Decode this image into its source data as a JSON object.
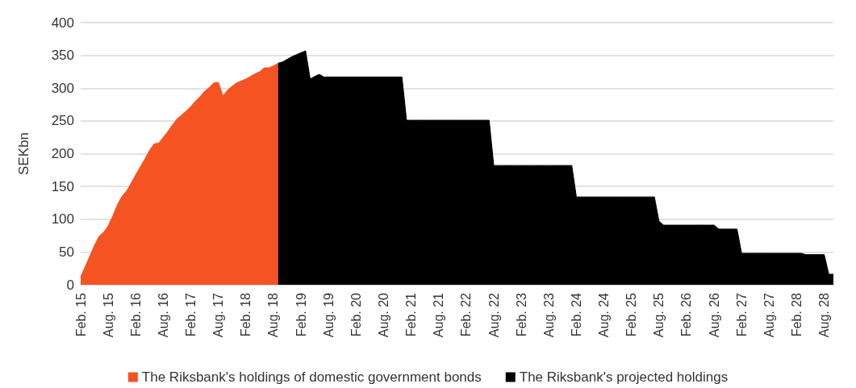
{
  "chart_data": {
    "type": "area",
    "ylabel": "SEKbn",
    "ylim": [
      0,
      400
    ],
    "yticks": [
      0,
      50,
      100,
      150,
      200,
      250,
      300,
      350,
      400
    ],
    "grid": "y",
    "legend": "bottom",
    "categories": [
      "Feb. 15",
      null,
      null,
      null,
      null,
      null,
      "Aug. 15",
      null,
      null,
      null,
      null,
      null,
      "Feb. 16",
      null,
      null,
      null,
      null,
      null,
      "Aug. 16",
      null,
      null,
      null,
      null,
      null,
      "Feb. 17",
      null,
      null,
      null,
      null,
      null,
      "Aug. 17",
      null,
      null,
      null,
      null,
      null,
      "Feb. 18",
      null,
      null,
      null,
      null,
      null,
      "Aug. 18",
      null,
      null,
      null,
      null,
      null,
      "Feb. 19",
      null,
      null,
      null,
      null,
      null,
      "Aug. 19",
      null,
      null,
      null,
      null,
      null,
      "Feb. 20",
      null,
      null,
      null,
      null,
      null,
      "Aug. 20",
      null,
      null,
      null,
      null,
      null,
      "Feb. 21",
      null,
      null,
      null,
      null,
      null,
      "Aug. 21",
      null,
      null,
      null,
      null,
      null,
      "Feb. 22",
      null,
      null,
      null,
      null,
      null,
      "Aug. 22",
      null,
      null,
      null,
      null,
      null,
      "Feb. 23",
      null,
      null,
      null,
      null,
      null,
      "Aug. 23",
      null,
      null,
      null,
      null,
      null,
      "Feb. 24",
      null,
      null,
      null,
      null,
      null,
      "Aug. 24",
      null,
      null,
      null,
      null,
      null,
      "Feb. 25",
      null,
      null,
      null,
      null,
      null,
      "Aug. 25",
      null,
      null,
      null,
      null,
      null,
      "Feb. 26",
      null,
      null,
      null,
      null,
      null,
      "Aug. 26",
      null,
      null,
      null,
      null,
      null,
      "Feb. 27",
      null,
      null,
      null,
      null,
      null,
      "Aug. 27",
      null,
      null,
      null,
      null,
      null,
      "Feb. 28",
      null,
      null,
      null,
      null,
      null,
      "Aug. 28",
      null,
      null
    ],
    "series": [
      {
        "name": "The Riksbank's holdings of domestic government bonds",
        "color": "#f55321",
        "values": [
          12,
          28,
          44,
          60,
          74,
          80,
          90,
          105,
          122,
          135,
          143,
          155,
          168,
          180,
          192,
          205,
          215,
          216,
          225,
          234,
          244,
          253,
          259,
          265,
          272,
          280,
          287,
          295,
          301,
          308,
          309,
          288,
          297,
          303,
          308,
          311,
          314,
          318,
          322,
          325,
          331,
          331,
          334,
          338,
          null,
          null,
          null,
          null,
          null,
          null,
          null,
          null,
          null,
          null,
          null,
          null,
          null,
          null,
          null,
          null,
          null,
          null,
          null,
          null,
          null,
          null,
          null,
          null,
          null,
          null,
          null,
          null,
          null,
          null,
          null,
          null,
          null,
          null,
          null,
          null,
          null,
          null,
          null,
          null,
          null,
          null,
          null,
          null,
          null,
          null,
          null,
          null,
          null,
          null,
          null,
          null,
          null,
          null,
          null,
          null,
          null,
          null,
          null,
          null,
          null,
          null,
          null,
          null,
          null,
          null,
          null,
          null,
          null,
          null,
          null,
          null,
          null,
          null,
          null,
          null,
          null,
          null,
          null,
          null,
          null,
          null,
          null,
          null,
          null,
          null,
          null,
          null,
          null,
          null,
          null,
          null,
          null,
          null,
          null,
          null,
          null,
          null,
          null,
          null,
          null,
          null,
          null,
          null,
          null,
          null,
          null,
          null,
          null,
          null,
          null,
          null,
          null,
          null,
          null,
          null,
          null,
          null,
          null,
          null,
          null
        ]
      },
      {
        "name": "The Riksbank's projected holdings",
        "color": "#000000",
        "values": [
          null,
          null,
          null,
          null,
          null,
          null,
          null,
          null,
          null,
          null,
          null,
          null,
          null,
          null,
          null,
          null,
          null,
          null,
          null,
          null,
          null,
          null,
          null,
          null,
          null,
          null,
          null,
          null,
          null,
          null,
          null,
          null,
          null,
          null,
          null,
          null,
          null,
          null,
          null,
          null,
          null,
          null,
          null,
          338,
          340,
          344,
          348,
          351,
          354,
          357,
          314,
          318,
          321,
          317,
          317,
          317,
          317,
          317,
          317,
          317,
          317,
          317,
          317,
          317,
          317,
          317,
          317,
          317,
          317,
          317,
          317,
          251,
          251,
          251,
          251,
          251,
          251,
          251,
          251,
          251,
          251,
          251,
          251,
          251,
          251,
          251,
          251,
          251,
          251,
          251,
          182,
          182,
          182,
          182,
          182,
          182,
          182,
          182,
          182,
          182,
          182,
          182,
          182,
          182,
          182,
          182,
          182,
          182,
          134,
          134,
          134,
          134,
          134,
          134,
          134,
          134,
          134,
          134,
          134,
          134,
          134,
          134,
          134,
          134,
          134,
          134,
          97,
          91,
          91,
          91,
          91,
          91,
          91,
          91,
          91,
          91,
          91,
          91,
          91,
          85,
          85,
          85,
          85,
          85,
          48,
          48,
          48,
          48,
          48,
          48,
          48,
          48,
          48,
          48,
          48,
          48,
          48,
          48,
          46,
          46,
          46,
          46,
          46,
          16,
          16
        ]
      }
    ]
  }
}
